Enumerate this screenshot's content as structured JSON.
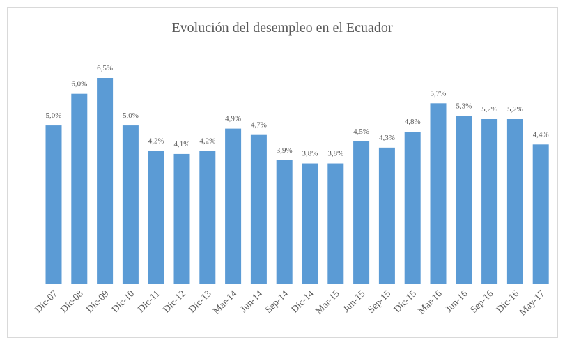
{
  "chart_data": {
    "type": "bar",
    "title": "Evolución del desempleo en el Ecuador",
    "categories": [
      "Dic-07",
      "Dic-08",
      "Dic-09",
      "Dic-10",
      "Dic-11",
      "Dic-12",
      "Dic-13",
      "Mar-14",
      "Jun-14",
      "Sep-14",
      "Dic-14",
      "Mar-15",
      "Jun-15",
      "Sep-15",
      "Dic-15",
      "Mar-16",
      "Jun-16",
      "Sep-16",
      "Dic-16",
      "May-17"
    ],
    "values": [
      5.0,
      6.0,
      6.5,
      5.0,
      4.2,
      4.1,
      4.2,
      4.9,
      4.7,
      3.9,
      3.8,
      3.8,
      4.5,
      4.3,
      4.8,
      5.7,
      5.3,
      5.2,
      5.2,
      4.4
    ],
    "value_labels": [
      "5,0%",
      "6,0%",
      "6,5%",
      "5,0%",
      "4,2%",
      "4,1%",
      "4,2%",
      "4,9%",
      "4,7%",
      "3,9%",
      "3,8%",
      "3,8%",
      "4,5%",
      "4,3%",
      "4,8%",
      "5,7%",
      "5,3%",
      "5,2%",
      "5,2%",
      "4,4%"
    ],
    "color": "#5b9bd5"
  }
}
